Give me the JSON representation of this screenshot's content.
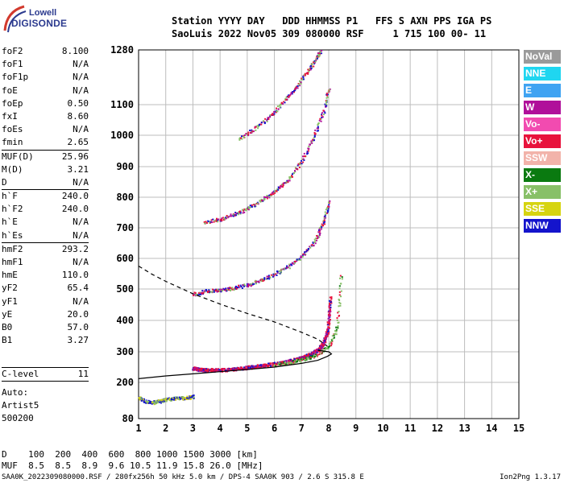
{
  "logo": {
    "line1": "Lowell",
    "line2": "DIGISONDE"
  },
  "header": {
    "line1": "Station YYYY DAY   DDD HHMMSS P1   FFS S AXN PPS IGA PS",
    "line2": "SaoLuis 2022 Nov05 309 080000 RSF     1 715 100 00- 11"
  },
  "params_group1": [
    {
      "k": "foF2",
      "v": "8.100"
    },
    {
      "k": "foF1",
      "v": "N/A"
    },
    {
      "k": "foF1p",
      "v": "N/A"
    },
    {
      "k": "foE",
      "v": "N/A"
    },
    {
      "k": "foEp",
      "v": "0.50"
    },
    {
      "k": "fxI",
      "v": "8.60"
    },
    {
      "k": "foEs",
      "v": "N/A"
    },
    {
      "k": "fmin",
      "v": "2.65"
    }
  ],
  "params_group2": [
    {
      "k": "MUF(D)",
      "v": "25.96"
    },
    {
      "k": "M(D)",
      "v": "3.21"
    },
    {
      "k": "D",
      "v": "N/A"
    }
  ],
  "params_group3": [
    {
      "k": "h`F",
      "v": "240.0"
    },
    {
      "k": "h`F2",
      "v": "240.0"
    },
    {
      "k": "h`E",
      "v": "N/A"
    },
    {
      "k": "h`Es",
      "v": "N/A"
    }
  ],
  "params_group4": [
    {
      "k": "hmF2",
      "v": "293.2"
    },
    {
      "k": "hmF1",
      "v": "N/A"
    },
    {
      "k": "hmE",
      "v": "110.0"
    },
    {
      "k": "yF2",
      "v": "65.4"
    },
    {
      "k": "yF1",
      "v": "N/A"
    },
    {
      "k": "yE",
      "v": "20.0"
    },
    {
      "k": "B0",
      "v": "57.0"
    },
    {
      "k": "B1",
      "v": "3.27"
    }
  ],
  "clevel": {
    "k": "C-level",
    "v": "11"
  },
  "auto": [
    "Auto:",
    "Artist5",
    "500200"
  ],
  "legend": [
    {
      "label": "NoVal",
      "color": "#9a9a9a"
    },
    {
      "label": "NNE",
      "color": "#1fd6f0"
    },
    {
      "label": "E",
      "color": "#3fa3f2"
    },
    {
      "label": "W",
      "color": "#b0109a"
    },
    {
      "label": "Vo-",
      "color": "#f24bb0"
    },
    {
      "label": "Vo+",
      "color": "#e8123c"
    },
    {
      "label": "SSW",
      "color": "#f2b3aa"
    },
    {
      "label": "X-",
      "color": "#0a7a10"
    },
    {
      "label": "X+",
      "color": "#88c068"
    },
    {
      "label": "SSE",
      "color": "#d6d410"
    },
    {
      "label": "NNW",
      "color": "#1414cc"
    }
  ],
  "muf_table": {
    "line1": "D    100  200  400  600  800 1000 1500 3000 [km]",
    "line2": "MUF  8.5  8.5  8.9  9.6 10.5 11.9 15.8 26.0 [MHz]"
  },
  "footer": {
    "left": "SAA0K_2022309080000.RSF / 280fx256h 50 kHz 5.0 km / DPS-4 SAA0K 903 / 2.6 S 315.8 E",
    "right": "Ion2Png 1.3.17"
  },
  "chart_data": {
    "type": "scatter",
    "xlim": [
      1,
      15
    ],
    "ylim": [
      80,
      1280
    ],
    "x_ticks": [
      1,
      2,
      3,
      4,
      5,
      6,
      7,
      8,
      9,
      10,
      11,
      12,
      13,
      14,
      15
    ],
    "y_ticks": [
      80,
      200,
      300,
      400,
      500,
      600,
      700,
      800,
      900,
      1000,
      1100,
      1280
    ],
    "y_scale": "reciprocal",
    "grid": true,
    "traces": [
      {
        "name": "o-trace 1st hop",
        "x": [
          3.0,
          3.2,
          3.5,
          4.0,
          4.5,
          5.0,
          5.5,
          6.0,
          6.5,
          7.0,
          7.3,
          7.6,
          7.8,
          7.95,
          8.05
        ],
        "y": [
          248,
          244,
          242,
          242,
          245,
          250,
          256,
          262,
          270,
          282,
          292,
          308,
          330,
          370,
          480
        ]
      },
      {
        "name": "x-trace 1st hop",
        "x": [
          6.0,
          6.5,
          7.0,
          7.5,
          8.0,
          8.3,
          8.45
        ],
        "y": [
          258,
          266,
          275,
          290,
          320,
          380,
          560
        ]
      },
      {
        "name": "o-trace 2nd hop",
        "x": [
          3.0,
          3.5,
          4.0,
          4.5,
          5.0,
          5.5,
          6.0,
          6.5,
          7.0,
          7.5,
          7.8,
          8.0
        ],
        "y": [
          485,
          495,
          498,
          505,
          515,
          530,
          550,
          575,
          610,
          660,
          720,
          790
        ]
      },
      {
        "name": "o-trace 3rd hop",
        "x": [
          3.4,
          4.0,
          4.5,
          5.0,
          5.5,
          6.0,
          6.5,
          7.0,
          7.4,
          7.8,
          8.0
        ],
        "y": [
          720,
          730,
          745,
          765,
          790,
          820,
          860,
          920,
          990,
          1080,
          1160
        ]
      },
      {
        "name": "o-trace 4th hop",
        "x": [
          4.7,
          5.2,
          5.8,
          6.3,
          6.8,
          7.2,
          7.5,
          7.7
        ],
        "y": [
          990,
          1020,
          1060,
          1110,
          1160,
          1210,
          1250,
          1280
        ]
      },
      {
        "name": "low-height echoes",
        "x": [
          1.0,
          1.2,
          1.5,
          1.8,
          2.0,
          2.3,
          2.6,
          2.9,
          3.0
        ],
        "y": [
          150,
          140,
          135,
          140,
          145,
          148,
          150,
          152,
          155
        ]
      }
    ],
    "profile": {
      "x": [
        1,
        2,
        3,
        4,
        5,
        6,
        7,
        7.6,
        7.95,
        8.1,
        8.0,
        7.6
      ],
      "y": [
        212,
        221,
        228,
        235,
        242,
        250,
        262,
        272,
        285,
        293,
        300,
        305
      ]
    },
    "extrapolated_profile": {
      "x": [
        1,
        1.5,
        2,
        3,
        4,
        5,
        6,
        7,
        7.6,
        7.95
      ],
      "y": [
        575,
        548,
        525,
        485,
        452,
        422,
        395,
        362,
        340,
        318
      ]
    }
  }
}
